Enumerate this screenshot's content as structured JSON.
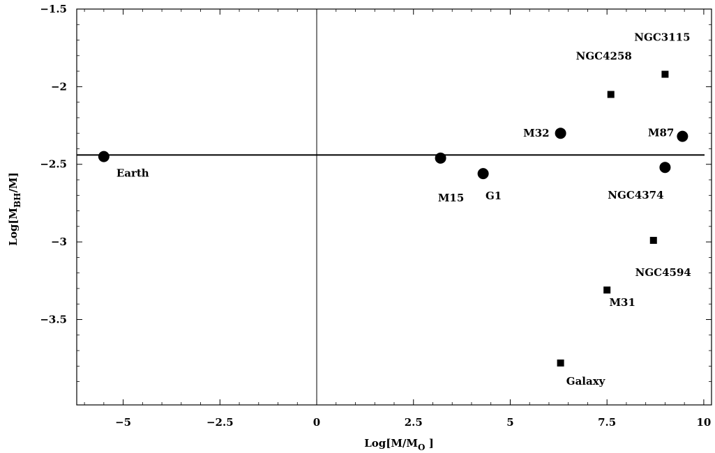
{
  "chart_data": {
    "type": "scatter",
    "title": "",
    "xlabel": {
      "main": "Log[M/M",
      "sub": "O",
      "tail": " ]"
    },
    "ylabel": {
      "main": "Log[M",
      "sub": "BH",
      "tail": "/M]"
    },
    "xlim": [
      -6.2,
      10.2
    ],
    "ylim": [
      -4.05,
      -1.5
    ],
    "x_ticks": [
      {
        "value": -5,
        "label": "−5"
      },
      {
        "value": -2.5,
        "label": "−2.5"
      },
      {
        "value": 0,
        "label": "0"
      },
      {
        "value": 2.5,
        "label": "2.5"
      },
      {
        "value": 5,
        "label": "5"
      },
      {
        "value": 7.5,
        "label": "7.5"
      },
      {
        "value": 10,
        "label": "10"
      }
    ],
    "y_ticks": [
      {
        "value": -1.5,
        "label": "−1.5"
      },
      {
        "value": -2,
        "label": "−2"
      },
      {
        "value": -2.5,
        "label": "−2.5"
      },
      {
        "value": -3,
        "label": "−3"
      },
      {
        "value": -3.5,
        "label": "−3.5"
      }
    ],
    "reference_lines": {
      "horizontal_y": -2.44,
      "vertical_x": 0
    },
    "series": [
      {
        "marker": "circle",
        "points": [
          {
            "label": "Earth",
            "x": -5.5,
            "y": -2.45
          },
          {
            "label": "M15",
            "x": 3.2,
            "y": -2.46
          },
          {
            "label": "G1",
            "x": 4.3,
            "y": -2.56
          },
          {
            "label": "M32",
            "x": 6.3,
            "y": -2.3
          },
          {
            "label": "M87",
            "x": 9.45,
            "y": -2.32
          },
          {
            "label": "NGC4374",
            "x": 9.0,
            "y": -2.52
          }
        ]
      },
      {
        "marker": "square",
        "points": [
          {
            "label": "NGC3115",
            "x": 9.0,
            "y": -1.92
          },
          {
            "label": "NGC4258",
            "x": 7.6,
            "y": -2.05
          },
          {
            "label": "NGC4594",
            "x": 8.7,
            "y": -2.99
          },
          {
            "label": "M31",
            "x": 7.5,
            "y": -3.31
          },
          {
            "label": "Galaxy",
            "x": 6.3,
            "y": -3.78
          }
        ]
      }
    ]
  }
}
